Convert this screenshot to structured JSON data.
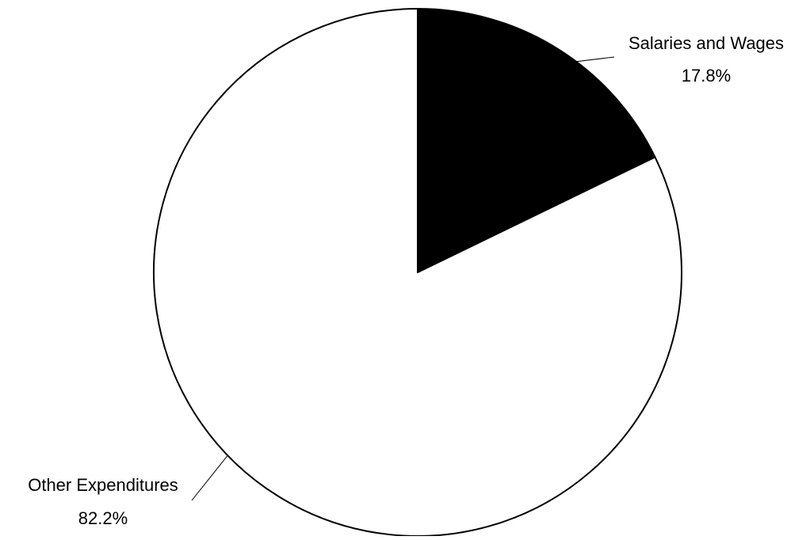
{
  "chart_data": {
    "type": "pie",
    "title": "",
    "slices": [
      {
        "label": "Salaries and Wages",
        "value": 17.8,
        "value_label": "17.8%",
        "color": "#000000"
      },
      {
        "label": "Other Expenditures",
        "value": 82.2,
        "value_label": "82.2%",
        "color": "#ffffff"
      }
    ],
    "start_angle": "12 o'clock",
    "direction": "clockwise",
    "legend": "none",
    "labels": "outside with leader lines",
    "outline_color": "#000000"
  }
}
